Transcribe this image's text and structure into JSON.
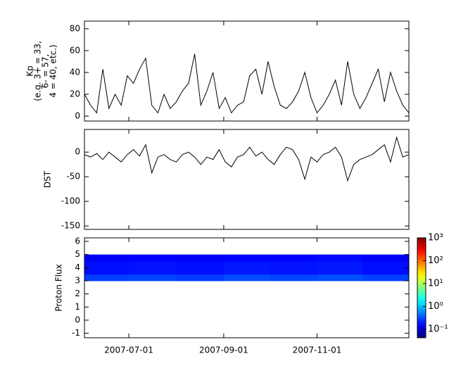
{
  "chart_data": [
    {
      "type": "line",
      "ylabel": [
        "Kp",
        "(e.g. 3+ = 33,",
        "6- = 57,",
        "4 = 40, etc.)"
      ],
      "x": [
        "2007-06-02",
        "2007-06-06",
        "2007-06-10",
        "2007-06-14",
        "2007-06-18",
        "2007-06-22",
        "2007-06-26",
        "2007-06-30",
        "2007-07-04",
        "2007-07-08",
        "2007-07-12",
        "2007-07-16",
        "2007-07-20",
        "2007-07-24",
        "2007-07-28",
        "2007-08-01",
        "2007-08-05",
        "2007-08-09",
        "2007-08-13",
        "2007-08-17",
        "2007-08-21",
        "2007-08-25",
        "2007-08-29",
        "2007-09-02",
        "2007-09-06",
        "2007-09-10",
        "2007-09-14",
        "2007-09-18",
        "2007-09-22",
        "2007-09-26",
        "2007-09-30",
        "2007-10-04",
        "2007-10-08",
        "2007-10-12",
        "2007-10-16",
        "2007-10-20",
        "2007-10-24",
        "2007-10-28",
        "2007-11-01",
        "2007-11-05",
        "2007-11-09",
        "2007-11-13",
        "2007-11-17",
        "2007-11-21",
        "2007-11-25",
        "2007-11-29",
        "2007-12-03",
        "2007-12-07",
        "2007-12-11",
        "2007-12-15",
        "2007-12-19",
        "2007-12-23",
        "2007-12-27",
        "2007-12-31"
      ],
      "values": [
        20,
        10,
        3,
        43,
        7,
        20,
        10,
        37,
        30,
        43,
        53,
        10,
        3,
        20,
        7,
        13,
        23,
        30,
        57,
        10,
        23,
        40,
        7,
        17,
        3,
        10,
        13,
        37,
        43,
        20,
        50,
        27,
        10,
        7,
        13,
        23,
        40,
        17,
        3,
        10,
        20,
        33,
        10,
        50,
        20,
        7,
        17,
        30,
        43,
        13,
        40,
        23,
        10,
        3
      ],
      "color": "#000000",
      "xlim": [
        "2007-06-02",
        "2007-12-31"
      ],
      "xticks": [
        "2007-07-01",
        "2007-09-01",
        "2007-11-01"
      ],
      "ylim": [
        -4.5,
        87
      ],
      "yticks": [
        0,
        20,
        40,
        60,
        80
      ]
    },
    {
      "type": "line",
      "ylabel": [
        "DST"
      ],
      "x": [
        "2007-06-02",
        "2007-06-06",
        "2007-06-10",
        "2007-06-14",
        "2007-06-18",
        "2007-06-22",
        "2007-06-26",
        "2007-06-30",
        "2007-07-04",
        "2007-07-08",
        "2007-07-12",
        "2007-07-16",
        "2007-07-20",
        "2007-07-24",
        "2007-07-28",
        "2007-08-01",
        "2007-08-05",
        "2007-08-09",
        "2007-08-13",
        "2007-08-17",
        "2007-08-21",
        "2007-08-25",
        "2007-08-29",
        "2007-09-02",
        "2007-09-06",
        "2007-09-10",
        "2007-09-14",
        "2007-09-18",
        "2007-09-22",
        "2007-09-26",
        "2007-09-30",
        "2007-10-04",
        "2007-10-08",
        "2007-10-12",
        "2007-10-16",
        "2007-10-20",
        "2007-10-24",
        "2007-10-28",
        "2007-11-01",
        "2007-11-05",
        "2007-11-09",
        "2007-11-13",
        "2007-11-17",
        "2007-11-21",
        "2007-11-25",
        "2007-11-29",
        "2007-12-03",
        "2007-12-07",
        "2007-12-11",
        "2007-12-15",
        "2007-12-19",
        "2007-12-23",
        "2007-12-27",
        "2007-12-31"
      ],
      "values": [
        -5,
        -10,
        -3,
        -15,
        0,
        -10,
        -20,
        -5,
        5,
        -8,
        15,
        -42,
        -10,
        -5,
        -15,
        -20,
        -5,
        0,
        -10,
        -25,
        -10,
        -15,
        5,
        -20,
        -30,
        -10,
        -5,
        10,
        -8,
        0,
        -15,
        -25,
        -5,
        10,
        5,
        -15,
        -55,
        -10,
        -20,
        -5,
        0,
        10,
        -10,
        -58,
        -25,
        -15,
        -10,
        -5,
        5,
        15,
        -20,
        30,
        -10,
        -5
      ],
      "color": "#000000",
      "xlim": [
        "2007-06-02",
        "2007-12-31"
      ],
      "xticks": [
        "2007-07-01",
        "2007-09-01",
        "2007-11-01"
      ],
      "ylim": [
        -157,
        46
      ],
      "yticks": [
        -150,
        -100,
        -50,
        0
      ]
    },
    {
      "type": "heatmap",
      "ylabel": [
        "Proton Flux"
      ],
      "x_bins": [
        "2007-06-02",
        "2007-07-01",
        "2007-08-01",
        "2007-09-01",
        "2007-10-01",
        "2007-11-01",
        "2007-12-01",
        "2007-12-31"
      ],
      "y_bins": [
        3,
        3.5,
        4.5,
        5
      ],
      "z": [
        [
          0.28,
          0.3,
          0.27,
          0.32,
          0.3,
          0.33,
          0.28
        ],
        [
          0.17,
          0.18,
          0.17,
          0.19,
          0.18,
          0.19,
          0.17
        ],
        [
          0.14,
          0.15,
          0.14,
          0.15,
          0.15,
          0.16,
          0.14
        ]
      ],
      "xlim": [
        "2007-06-02",
        "2007-12-31"
      ],
      "xticks": [
        {
          "value": "2007-07-01",
          "label": "2007-07-01"
        },
        {
          "value": "2007-09-01",
          "label": "2007-09-01"
        },
        {
          "value": "2007-11-01",
          "label": "2007-11-01"
        }
      ],
      "ylim": [
        -1.34,
        6.27
      ],
      "yticks": [
        -1,
        0,
        1,
        2,
        3,
        4,
        5,
        6
      ],
      "colormap": "jet",
      "log_color": true,
      "clim": [
        0.043,
        1000
      ],
      "cticks": [
        {
          "value": 0.1,
          "label": "10⁻¹"
        },
        {
          "value": 1,
          "label": "10⁰"
        },
        {
          "value": 10,
          "label": "10¹"
        },
        {
          "value": 100,
          "label": "10²"
        },
        {
          "value": 1000,
          "label": "10³"
        }
      ]
    }
  ]
}
